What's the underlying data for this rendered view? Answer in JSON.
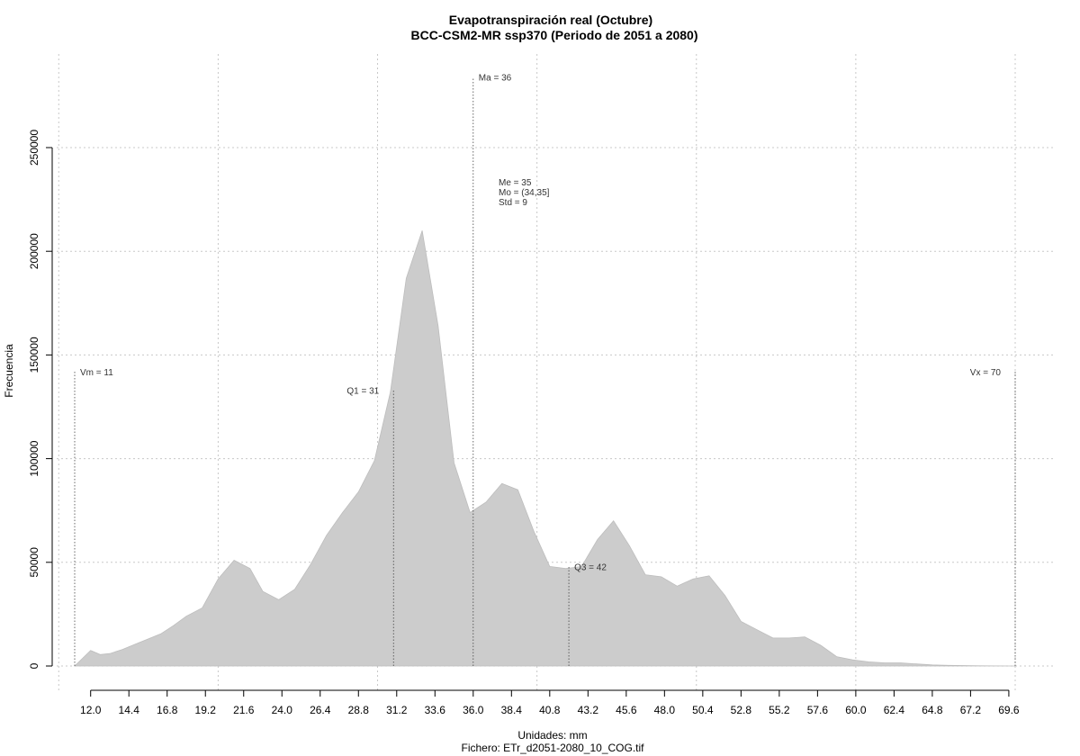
{
  "chart_data": {
    "type": "area",
    "title": "Evapotranspiración real (Octubre)",
    "subtitle": "BCC-CSM2-MR ssp370 (Periodo de 2051 a 2080)",
    "xlabel": "Unidades: mm",
    "ylabel": "Frecuencia",
    "caption": "Fichero: ETr_d2051-2080_10_COG.tif",
    "xlim": [
      9.8,
      71.3
    ],
    "ylim": [
      0,
      280000
    ],
    "grid": true,
    "fill_color": "#cccccc",
    "x_ticks": [
      12.0,
      14.4,
      16.8,
      19.2,
      21.6,
      24.0,
      26.4,
      28.8,
      31.2,
      33.6,
      36.0,
      38.4,
      40.8,
      43.2,
      45.6,
      48.0,
      50.4,
      52.8,
      55.2,
      57.6,
      60.0,
      62.4,
      64.8,
      67.2,
      69.6
    ],
    "x_tick_labels": [
      "12.0",
      "14.4",
      "16.8",
      "19.2",
      "21.6",
      "24.0",
      "26.4",
      "28.8",
      "31.2",
      "33.6",
      "36.0",
      "38.4",
      "40.8",
      "43.2",
      "45.6",
      "48.0",
      "50.4",
      "52.8",
      "55.2",
      "57.6",
      "60.0",
      "62.4",
      "64.8",
      "67.2",
      "69.6"
    ],
    "y_ticks": [
      0,
      50000,
      100000,
      150000,
      200000,
      250000
    ],
    "y_tick_labels": [
      "0",
      "50000",
      "100000",
      "150000",
      "200000",
      "250000"
    ],
    "x": [
      11.0,
      12.0,
      12.6,
      13.2,
      14.0,
      14.8,
      15.6,
      16.4,
      17.2,
      18.0,
      19.0,
      20.0,
      21.0,
      22.0,
      22.8,
      23.8,
      24.8,
      25.8,
      26.8,
      27.8,
      28.8,
      29.8,
      30.8,
      31.8,
      32.8,
      33.8,
      34.8,
      35.8,
      36.8,
      37.8,
      38.8,
      39.8,
      40.8,
      41.8,
      42.8,
      43.8,
      44.8,
      45.8,
      46.8,
      47.8,
      48.8,
      49.8,
      50.8,
      51.8,
      52.8,
      53.8,
      54.8,
      55.8,
      56.8,
      57.8,
      58.8,
      59.8,
      60.8,
      61.8,
      62.8,
      63.8,
      64.8,
      65.8,
      66.8,
      67.8,
      68.8,
      69.8,
      70.0
    ],
    "y": [
      0,
      7500,
      5500,
      6000,
      8000,
      10500,
      13000,
      15500,
      19500,
      24000,
      28000,
      42000,
      51000,
      47000,
      36000,
      32000,
      37000,
      49000,
      63000,
      74000,
      84000,
      99000,
      132000,
      187000,
      210000,
      164000,
      98000,
      74000,
      79000,
      88000,
      85000,
      65000,
      48000,
      47000,
      48000,
      61000,
      70000,
      58000,
      44000,
      43000,
      38500,
      42000,
      43500,
      34000,
      21500,
      17500,
      13500,
      13500,
      14000,
      10000,
      4500,
      3000,
      2000,
      1500,
      1500,
      1000,
      500,
      300,
      200,
      100,
      50,
      0,
      0
    ],
    "annotations": [
      {
        "label": "Vm = 11",
        "x": 11,
        "y_top": 142000,
        "anchor": "start"
      },
      {
        "label": "Q1 = 31",
        "x": 31,
        "y_top": 133000,
        "anchor": "end"
      },
      {
        "label": "Ma = 36",
        "x": 36,
        "y_top": 284000,
        "anchor": "start"
      },
      {
        "label": "Q3 = 42",
        "x": 42,
        "y_top": 48000,
        "anchor": "start"
      },
      {
        "label": "Vx = 70",
        "x": 70,
        "y_top": 142000,
        "anchor": "end"
      }
    ],
    "stats": [
      "Me = 35",
      "Mo = (34,35]",
      "Std = 9"
    ]
  }
}
